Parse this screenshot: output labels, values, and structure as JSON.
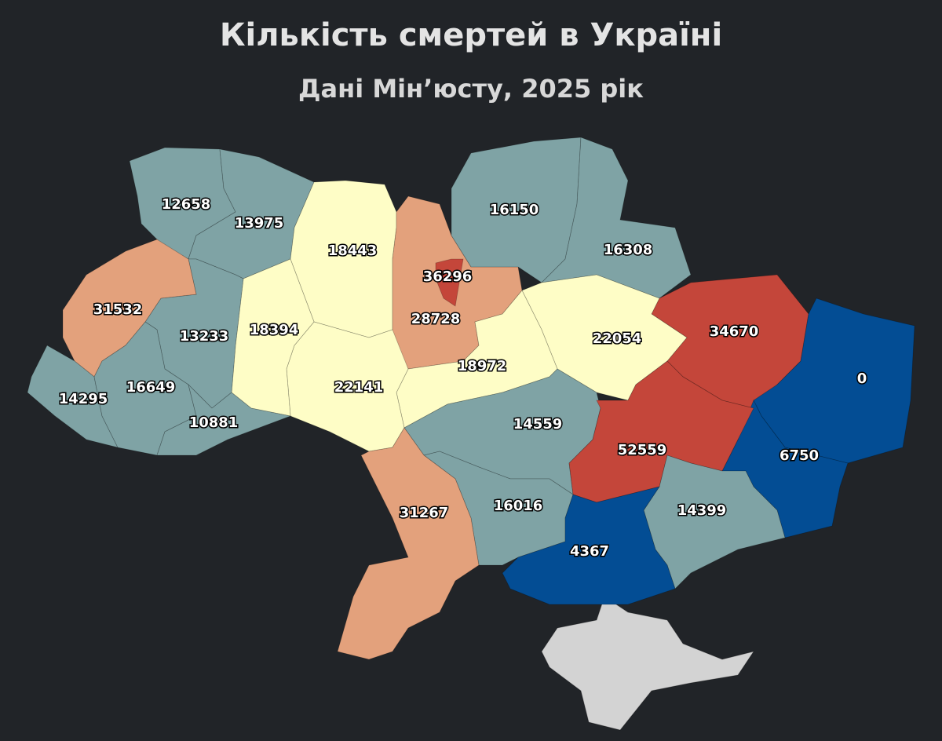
{
  "title": "Кількість смертей в Україні",
  "subtitle": "Дані Мін’юсту, 2025 рік",
  "regions": [
    {
      "value": 12658,
      "color": "#7fa3a5"
    },
    {
      "value": 13975,
      "color": "#7fa3a5"
    },
    {
      "value": 18443,
      "color": "#fefdc6"
    },
    {
      "value": 28728,
      "color": "#e3a17c"
    },
    {
      "value": 36296,
      "color": "#c4463a"
    },
    {
      "value": 16150,
      "color": "#7fa3a5"
    },
    {
      "value": 16308,
      "color": "#7fa3a5"
    },
    {
      "value": 34670,
      "color": "#c4463a"
    },
    {
      "value": 0,
      "color": "#034d94"
    },
    {
      "value": 6750,
      "color": "#034d94"
    },
    {
      "value": 22054,
      "color": "#fefdc6"
    },
    {
      "value": 18972,
      "color": "#fefdc6"
    },
    {
      "value": 22141,
      "color": "#fefdc6"
    },
    {
      "value": 18394,
      "color": "#fefdc6"
    },
    {
      "value": 13233,
      "color": "#7fa3a5"
    },
    {
      "value": 31532,
      "color": "#e3a17c"
    },
    {
      "value": 14295,
      "color": "#7fa3a5"
    },
    {
      "value": 16649,
      "color": "#7fa3a5"
    },
    {
      "value": 10881,
      "color": "#7fa3a5"
    },
    {
      "value": 14559,
      "color": "#7fa3a5"
    },
    {
      "value": 52559,
      "color": "#c4463a"
    },
    {
      "value": 14399,
      "color": "#7fa3a5"
    },
    {
      "value": 16016,
      "color": "#7fa3a5"
    },
    {
      "value": 31267,
      "color": "#e3a17c"
    },
    {
      "value": 4367,
      "color": "#034d94"
    }
  ]
}
